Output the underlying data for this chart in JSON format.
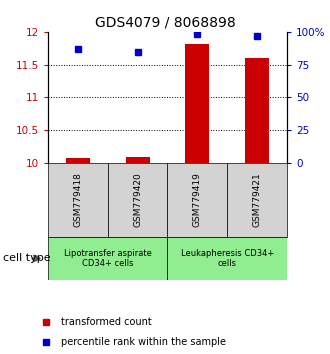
{
  "title": "GDS4079 / 8068898",
  "samples": [
    "GSM779418",
    "GSM779420",
    "GSM779419",
    "GSM779421"
  ],
  "red_values": [
    10.07,
    10.09,
    11.82,
    11.6
  ],
  "blue_values": [
    87,
    85,
    98,
    97
  ],
  "ylim_left": [
    10.0,
    12.0
  ],
  "ylim_right": [
    0,
    100
  ],
  "yticks_left": [
    10.0,
    10.5,
    11.0,
    11.5,
    12.0
  ],
  "yticks_right": [
    0,
    25,
    50,
    75,
    100
  ],
  "ytick_labels_right": [
    "0",
    "25",
    "50",
    "75",
    "100%"
  ],
  "grid_values": [
    10.5,
    11.0,
    11.5
  ],
  "bar_width": 0.4,
  "red_color": "#CC0000",
  "blue_color": "#0000CC",
  "gray_color": "#D3D3D3",
  "green_color": "#90EE90",
  "cell_type_label": "cell type",
  "group1_label": "Lipotransfer aspirate\nCD34+ cells",
  "group2_label": "Leukapheresis CD34+\ncells",
  "legend_red": "transformed count",
  "legend_blue": "percentile rank within the sample",
  "title_fontsize": 10,
  "tick_fontsize": 7.5,
  "sample_fontsize": 6.5,
  "group_fontsize": 6,
  "legend_fontsize": 7,
  "cell_type_fontsize": 8
}
